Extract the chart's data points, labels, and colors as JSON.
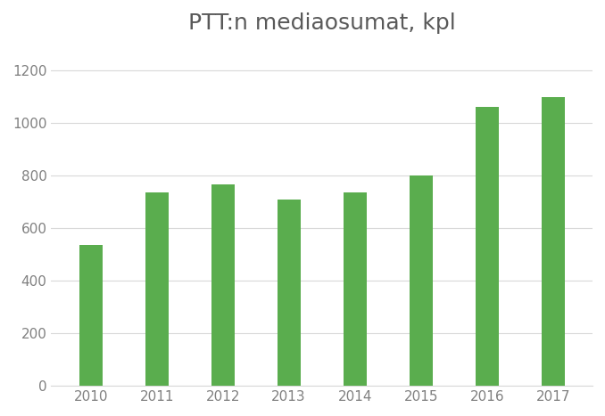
{
  "title": "PTT:n mediaosumat, kpl",
  "categories": [
    "2010",
    "2011",
    "2012",
    "2013",
    "2014",
    "2015",
    "2016",
    "2017"
  ],
  "values": [
    535,
    735,
    765,
    710,
    735,
    800,
    1063,
    1097
  ],
  "bar_color": "#5aad4e",
  "ylim": [
    0,
    1300
  ],
  "yticks": [
    0,
    200,
    400,
    600,
    800,
    1000,
    1200
  ],
  "background_color": "#ffffff",
  "title_fontsize": 18,
  "tick_fontsize": 11,
  "grid_color": "#d9d9d9",
  "bar_width": 0.35,
  "tick_color": "#808080",
  "title_color": "#595959"
}
